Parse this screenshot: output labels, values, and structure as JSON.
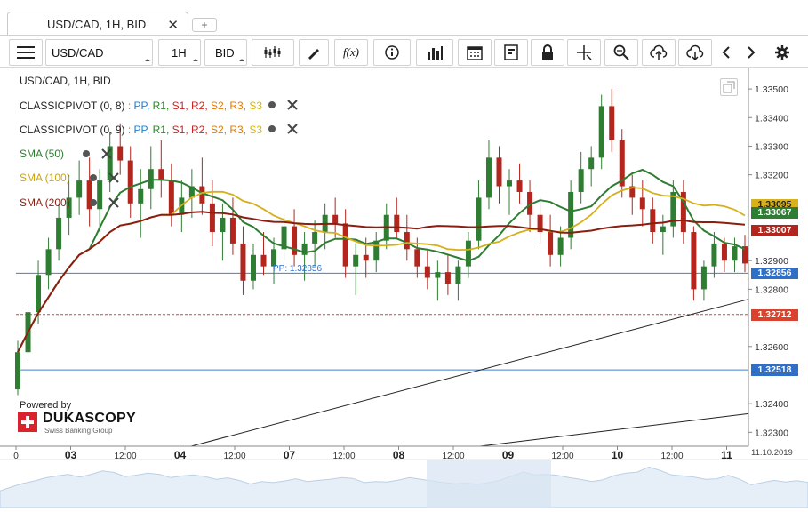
{
  "tab": {
    "title": "USD/CAD, 1H, BID",
    "close": "✕",
    "add": "+"
  },
  "toolbar": {
    "symbol": "USD/CAD",
    "period": "1H",
    "side": "BID"
  },
  "chart_title": "USD/CAD, 1H, BID",
  "indicators": [
    {
      "name": "CLASSICPIVOT (0, 8)",
      "levels": [
        "PP",
        "R1",
        "S1",
        "R2",
        "S2",
        "R3",
        "S3"
      ]
    },
    {
      "name": "CLASSICPIVOT (0, 9)",
      "levels": [
        "PP",
        "R1",
        "S1",
        "R2",
        "S2",
        "R3",
        "S3"
      ]
    }
  ],
  "smas": [
    "SMA (50)",
    "SMA (100)",
    "SMA (200)"
  ],
  "pp_label": "PP: 1.32856",
  "powered_by": "Powered by",
  "brand": "DUKASCOPY",
  "brand_sub": "Swiss Banking Group",
  "date_label": "11.10.2019",
  "y_ticks": [
    "1.33500",
    "1.33400",
    "1.33300",
    "1.33200",
    "1.32900",
    "1.32800",
    "1.32600",
    "1.32400",
    "1.32300"
  ],
  "x_ticks": [
    {
      "t": "0",
      "bold": false
    },
    {
      "t": "03",
      "bold": true
    },
    {
      "t": "12:00",
      "bold": false
    },
    {
      "t": "04",
      "bold": true
    },
    {
      "t": "12:00",
      "bold": false
    },
    {
      "t": "07",
      "bold": true
    },
    {
      "t": "12:00",
      "bold": false
    },
    {
      "t": "08",
      "bold": true
    },
    {
      "t": "12:00",
      "bold": false
    },
    {
      "t": "09",
      "bold": true
    },
    {
      "t": "12:00",
      "bold": false
    },
    {
      "t": "10",
      "bold": true
    },
    {
      "t": "12:00",
      "bold": false
    },
    {
      "t": "11",
      "bold": true
    }
  ],
  "badges": [
    {
      "v": "1.33095",
      "color": "#d9b21a",
      "text": "#222"
    },
    {
      "v": "1.33067",
      "color": "#2e7d32",
      "text": "#fff"
    },
    {
      "v": "1.33007",
      "color": "#b3261e",
      "text": "#fff"
    },
    {
      "v": "1.32856",
      "color": "#2f6fc6",
      "text": "#fff"
    },
    {
      "v": "1.32712",
      "color": "#d9432e",
      "text": "#fff"
    },
    {
      "v": "1.32518",
      "color": "#2f6fc6",
      "text": "#fff"
    }
  ],
  "colors": {
    "pp": "#1a7fd6",
    "r": "#2a8a2a",
    "s": "#cc2222",
    "r2": "#cc2222",
    "s2": "#e07b00",
    "r3": "#e07b00",
    "s3": "#d7b600",
    "sma50": "#2e7d32",
    "sma100": "#d4b01a",
    "sma200": "#8b1e12",
    "up": "#2e7d32",
    "down": "#b3261e"
  },
  "chart_data": {
    "type": "candlestick",
    "title": "USD/CAD, 1H, BID",
    "ylim": [
      1.3227,
      1.3355
    ],
    "hlines": [
      1.32856,
      1.32712,
      1.32518
    ],
    "ohlc": [
      [
        1.3245,
        1.3262,
        1.3243,
        1.3258
      ],
      [
        1.3258,
        1.3275,
        1.3255,
        1.3272
      ],
      [
        1.3272,
        1.329,
        1.3268,
        1.3285
      ],
      [
        1.3285,
        1.3298,
        1.328,
        1.3294
      ],
      [
        1.3294,
        1.331,
        1.329,
        1.3305
      ],
      [
        1.3305,
        1.332,
        1.3299,
        1.3312
      ],
      [
        1.3312,
        1.3325,
        1.3306,
        1.3318
      ],
      [
        1.3318,
        1.3326,
        1.3302,
        1.3308
      ],
      [
        1.3308,
        1.3322,
        1.33,
        1.3318
      ],
      [
        1.3318,
        1.3335,
        1.3314,
        1.333
      ],
      [
        1.333,
        1.3338,
        1.332,
        1.3325
      ],
      [
        1.3325,
        1.333,
        1.3305,
        1.331
      ],
      [
        1.331,
        1.3322,
        1.3298,
        1.3315
      ],
      [
        1.3315,
        1.333,
        1.3308,
        1.3322
      ],
      [
        1.3322,
        1.3332,
        1.3312,
        1.3318
      ],
      [
        1.3318,
        1.3324,
        1.3302,
        1.3306
      ],
      [
        1.3306,
        1.3318,
        1.33,
        1.3312
      ],
      [
        1.3312,
        1.3322,
        1.3305,
        1.3316
      ],
      [
        1.3316,
        1.3326,
        1.3306,
        1.331
      ],
      [
        1.331,
        1.3318,
        1.3295,
        1.33
      ],
      [
        1.33,
        1.331,
        1.329,
        1.3305
      ],
      [
        1.3305,
        1.3312,
        1.3292,
        1.3296
      ],
      [
        1.3296,
        1.3302,
        1.3278,
        1.3283
      ],
      [
        1.3283,
        1.3296,
        1.328,
        1.3292
      ],
      [
        1.3292,
        1.33,
        1.3285,
        1.3288
      ],
      [
        1.3288,
        1.3298,
        1.3282,
        1.3294
      ],
      [
        1.3294,
        1.3306,
        1.329,
        1.3302
      ],
      [
        1.3302,
        1.3308,
        1.3288,
        1.3292
      ],
      [
        1.3292,
        1.33,
        1.3283,
        1.3296
      ],
      [
        1.3296,
        1.3304,
        1.3288,
        1.33
      ],
      [
        1.33,
        1.331,
        1.3294,
        1.3306
      ],
      [
        1.3306,
        1.3312,
        1.3298,
        1.3303
      ],
      [
        1.3303,
        1.3308,
        1.3284,
        1.3288
      ],
      [
        1.3288,
        1.3296,
        1.3278,
        1.3292
      ],
      [
        1.3292,
        1.3298,
        1.3284,
        1.329
      ],
      [
        1.329,
        1.33,
        1.3286,
        1.3297
      ],
      [
        1.3297,
        1.331,
        1.3294,
        1.3306
      ],
      [
        1.3306,
        1.3312,
        1.3298,
        1.33
      ],
      [
        1.33,
        1.3306,
        1.329,
        1.3294
      ],
      [
        1.3294,
        1.3298,
        1.3284,
        1.3288
      ],
      [
        1.3288,
        1.3294,
        1.328,
        1.3284
      ],
      [
        1.3284,
        1.329,
        1.3276,
        1.3286
      ],
      [
        1.3286,
        1.3292,
        1.3278,
        1.3282
      ],
      [
        1.3282,
        1.329,
        1.3276,
        1.3288
      ],
      [
        1.3288,
        1.33,
        1.3284,
        1.3297
      ],
      [
        1.3297,
        1.3318,
        1.3294,
        1.3312
      ],
      [
        1.3312,
        1.3332,
        1.3308,
        1.3326
      ],
      [
        1.3326,
        1.333,
        1.331,
        1.3316
      ],
      [
        1.3316,
        1.3322,
        1.3306,
        1.3318
      ],
      [
        1.3318,
        1.3324,
        1.331,
        1.3314
      ],
      [
        1.3314,
        1.3318,
        1.33,
        1.3306
      ],
      [
        1.3306,
        1.3312,
        1.3296,
        1.33
      ],
      [
        1.33,
        1.3306,
        1.3288,
        1.3292
      ],
      [
        1.3292,
        1.3302,
        1.3288,
        1.3298
      ],
      [
        1.3298,
        1.3318,
        1.3294,
        1.3314
      ],
      [
        1.3314,
        1.3328,
        1.331,
        1.3322
      ],
      [
        1.3322,
        1.333,
        1.3316,
        1.3326
      ],
      [
        1.3326,
        1.3348,
        1.3322,
        1.3344
      ],
      [
        1.3344,
        1.335,
        1.3328,
        1.3332
      ],
      [
        1.3332,
        1.3336,
        1.3312,
        1.3316
      ],
      [
        1.3316,
        1.332,
        1.3306,
        1.3312
      ],
      [
        1.3312,
        1.3318,
        1.3302,
        1.3308
      ],
      [
        1.3308,
        1.3312,
        1.3296,
        1.33
      ],
      [
        1.33,
        1.3306,
        1.3292,
        1.3302
      ],
      [
        1.3302,
        1.3318,
        1.3298,
        1.3314
      ],
      [
        1.3314,
        1.3318,
        1.3296,
        1.33
      ],
      [
        1.33,
        1.3302,
        1.3276,
        1.328
      ],
      [
        1.328,
        1.329,
        1.3276,
        1.3288
      ],
      [
        1.3288,
        1.33,
        1.3284,
        1.3296
      ],
      [
        1.3296,
        1.3298,
        1.3286,
        1.329
      ],
      [
        1.329,
        1.3298,
        1.3286,
        1.3295
      ],
      [
        1.3295,
        1.3299,
        1.3286,
        1.3289
      ]
    ]
  }
}
